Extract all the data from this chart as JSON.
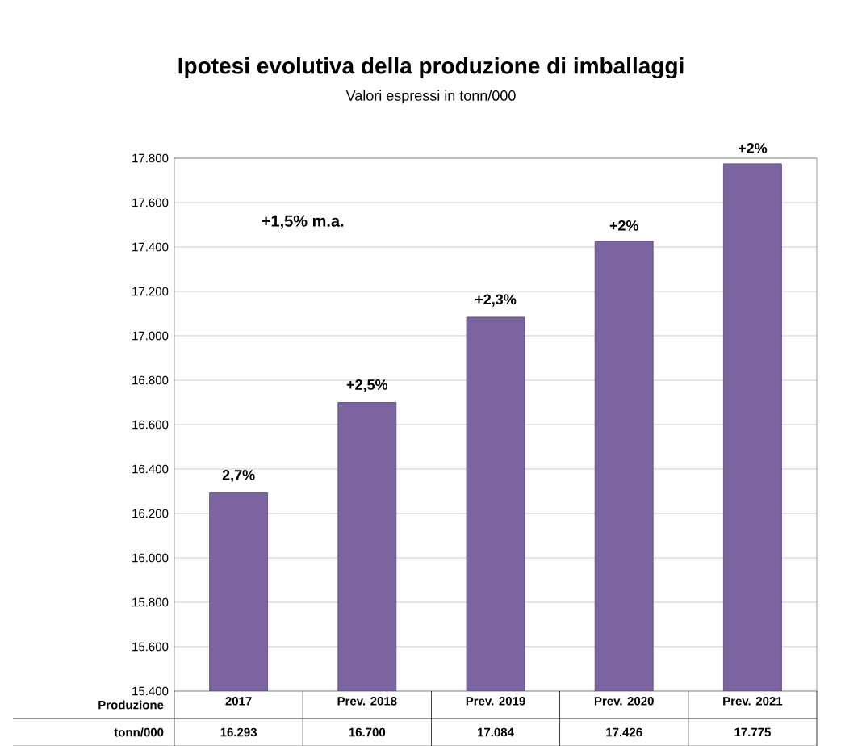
{
  "chart_data": {
    "type": "bar",
    "title": "Ipotesi evolutiva della produzione di imballaggi",
    "subtitle": "Valori espressi in tonn/000",
    "categories": [
      "2017",
      "Prev. 2018",
      "Prev. 2019",
      "Prev. 2020",
      "Prev. 2021"
    ],
    "values": [
      16293,
      16700,
      17084,
      17426,
      17775
    ],
    "value_labels": [
      "16.293",
      "16.700",
      "17.084",
      "17.426",
      "17.775"
    ],
    "color": "#7b64a0",
    "ylim": [
      15400,
      17800
    ],
    "yticks": [
      {
        "value": 15400,
        "label": "15.400"
      },
      {
        "value": 15600,
        "label": "15.600"
      },
      {
        "value": 15800,
        "label": "15.800"
      },
      {
        "value": 16000,
        "label": "16.000"
      },
      {
        "value": 16200,
        "label": "16.200"
      },
      {
        "value": 16400,
        "label": "16.400"
      },
      {
        "value": 16600,
        "label": "16.600"
      },
      {
        "value": 16800,
        "label": "16.800"
      },
      {
        "value": 17000,
        "label": "17.000"
      },
      {
        "value": 17200,
        "label": "17.200"
      },
      {
        "value": 17400,
        "label": "17.400"
      },
      {
        "value": 17600,
        "label": "17.600"
      },
      {
        "value": 17800,
        "label": "17.800"
      }
    ],
    "grid": "y",
    "annotations": [
      "+1,5% m.a.",
      "Produzione",
      "tonn/000",
      {
        "text": "2,7%",
        "x": "2017",
        "y": 16293
      },
      {
        "text": "+2,5%",
        "x": "Prev. 2018",
        "y": 16700
      },
      {
        "text": "+2,3%",
        "x": "Prev. 2019",
        "y": 17084
      },
      {
        "text": "+2%",
        "x": "Prev. 2020",
        "y": 17426
      },
      {
        "text": "+2%",
        "x": "Prev. 2021",
        "y": 17775
      }
    ]
  }
}
